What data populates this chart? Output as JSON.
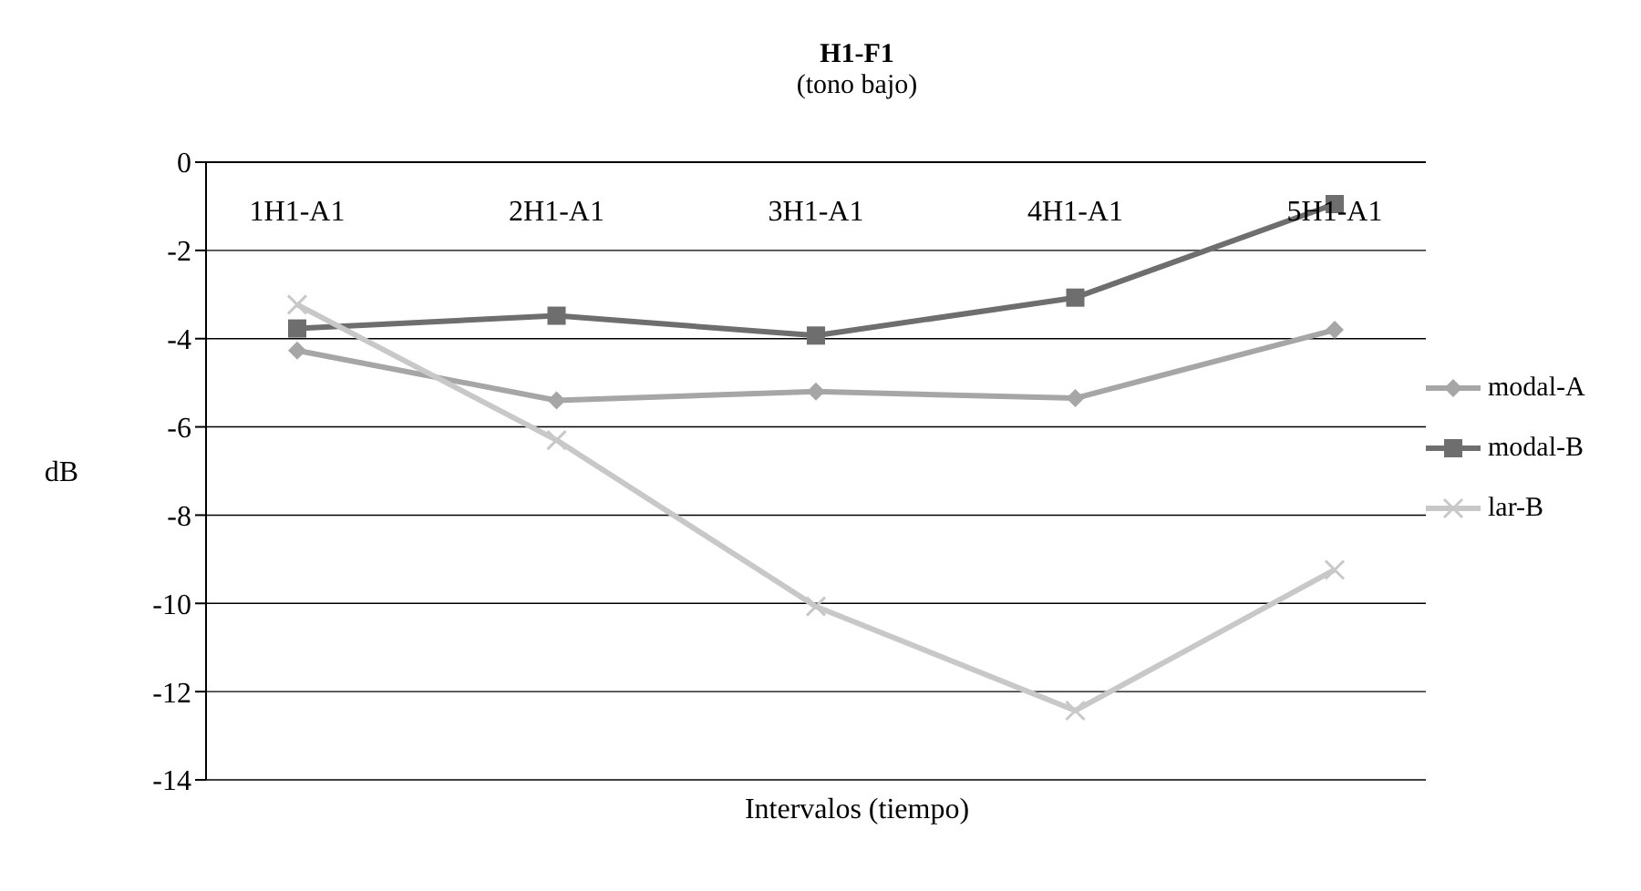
{
  "chart_data": {
    "type": "line",
    "title": "H1-F1",
    "subtitle": "(tono bajo)",
    "xlabel": "Intervalos (tiempo)",
    "ylabel": "dB",
    "categories": [
      "1H1-A1",
      "2H1-A1",
      "3H1-A1",
      "4H1-A1",
      "5H1-A1"
    ],
    "series": [
      {
        "name": "modal-A",
        "color": "#a6a6a6",
        "marker": "diamond",
        "values": [
          -4.27,
          -5.4,
          -5.2,
          -5.35,
          -3.8
        ]
      },
      {
        "name": "modal-B",
        "color": "#6e6e6e",
        "marker": "square",
        "values": [
          -3.77,
          -3.48,
          -3.93,
          -3.07,
          -0.95
        ]
      },
      {
        "name": "lar-B",
        "color": "#c8c8c8",
        "marker": "cross",
        "values": [
          -3.23,
          -6.3,
          -10.07,
          -12.43,
          -9.24
        ]
      }
    ],
    "ylim": [
      -14,
      0
    ],
    "yticks": [
      -14,
      -12,
      -10,
      -8,
      -6,
      -4,
      -2,
      0
    ],
    "grid": "y",
    "legend": "right",
    "line_style": "solid"
  }
}
